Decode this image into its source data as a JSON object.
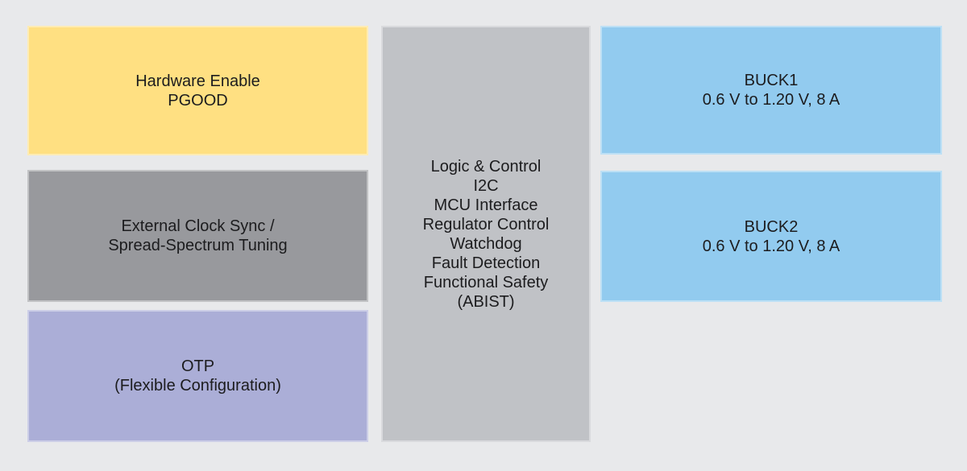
{
  "diagram": {
    "background_color": "#e8e9eb",
    "text_color": "#1c1c1e",
    "blocks": {
      "hardware_enable": {
        "color": "#ffe082",
        "lines": [
          "Hardware Enable",
          "PGOOD"
        ]
      },
      "clock_sync": {
        "color": "#98999d",
        "lines": [
          "External Clock Sync /",
          "Spread-Spectrum Tuning"
        ]
      },
      "otp": {
        "color": "#abaed7",
        "lines": [
          "OTP",
          "(Flexible Configuration)"
        ]
      },
      "logic_control": {
        "color": "#c0c2c6",
        "lines": [
          "Logic & Control",
          "I2C",
          "MCU Interface",
          "Regulator Control",
          "Watchdog",
          "Fault Detection",
          "Functional Safety",
          "(ABIST)"
        ]
      },
      "buck1": {
        "color": "#92cbef",
        "lines": [
          "BUCK1",
          "0.6 V to 1.20 V, 8 A"
        ]
      },
      "buck2": {
        "color": "#92cbef",
        "lines": [
          "BUCK2",
          "0.6 V to 1.20 V, 8 A"
        ]
      }
    }
  }
}
